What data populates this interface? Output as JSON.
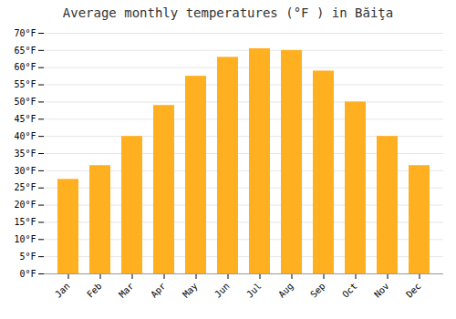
{
  "chart_data": {
    "type": "bar",
    "title": "Average monthly temperatures (°F ) in Băiţa",
    "categories": [
      "Jan",
      "Feb",
      "Mar",
      "Apr",
      "May",
      "Jun",
      "Jul",
      "Aug",
      "Sep",
      "Oct",
      "Nov",
      "Dec"
    ],
    "values": [
      27.5,
      31.5,
      40.0,
      49.0,
      57.5,
      63.0,
      65.5,
      65.0,
      59.0,
      50.0,
      40.0,
      31.5
    ],
    "color": "#FFB020",
    "ylim": [
      0,
      70
    ],
    "yticks": [
      {
        "value": 0,
        "label": "0°F"
      },
      {
        "value": 5,
        "label": "5°F"
      },
      {
        "value": 10,
        "label": "10°F"
      },
      {
        "value": 15,
        "label": "15°F"
      },
      {
        "value": 20,
        "label": "20°F"
      },
      {
        "value": 25,
        "label": "25°F"
      },
      {
        "value": 30,
        "label": "30°F"
      },
      {
        "value": 35,
        "label": "35°F"
      },
      {
        "value": 40,
        "label": "40°F"
      },
      {
        "value": 45,
        "label": "45°F"
      },
      {
        "value": 50,
        "label": "50°F"
      },
      {
        "value": 55,
        "label": "55°F"
      },
      {
        "value": 60,
        "label": "60°F"
      },
      {
        "value": 65,
        "label": "65°F"
      },
      {
        "value": 70,
        "label": "70°F"
      }
    ],
    "grid": true
  }
}
